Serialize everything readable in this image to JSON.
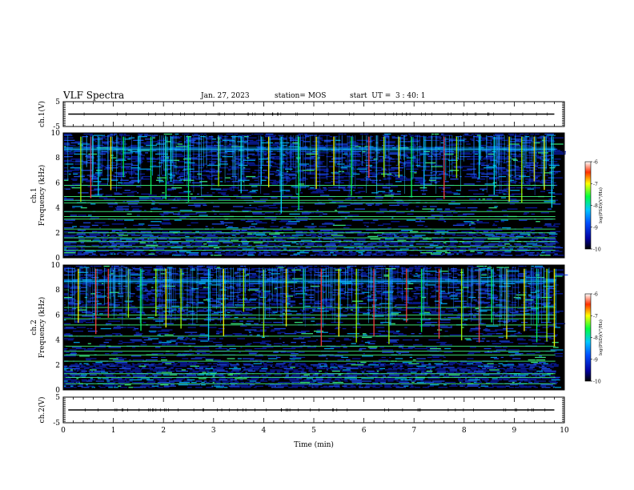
{
  "header": {
    "title": "VLF Spectra",
    "date": "Jan. 27, 2023",
    "station": "station= MOS",
    "start_ut": "start  UT =  3 : 40: 1"
  },
  "chart_data": [
    {
      "type": "line",
      "panel": "ch1-waveform",
      "ylabel": "ch.1(V)",
      "ylim": [
        -5,
        5
      ],
      "yticks": [
        "5",
        "-5"
      ],
      "xlim": [
        0,
        10
      ],
      "series": [
        {
          "x": [
            0.1,
            9.8
          ],
          "y": [
            0,
            0
          ]
        }
      ]
    },
    {
      "type": "heatmap",
      "panel": "ch1-spectrogram",
      "ylabel": "ch.1\nFrequency (kHz)",
      "ylim": [
        0,
        10
      ],
      "yticks": [
        "0",
        "2",
        "4",
        "6",
        "8",
        "10"
      ],
      "xlim": [
        0,
        10
      ],
      "colorbar": {
        "label": "log(PSD)(V²/Hz)",
        "range": [
          -10,
          -6
        ],
        "ticks": [
          "-6",
          "-7",
          "-8",
          "-9",
          "-10"
        ]
      },
      "bands_khz": [
        0.6,
        0.9,
        1.3,
        1.6,
        2.0,
        2.3,
        3.1,
        3.3,
        3.7,
        4.4,
        4.6,
        4.9,
        5.8,
        8.7
      ],
      "bursts_min": [
        0.35,
        0.55,
        0.7,
        0.95,
        1.2,
        1.5,
        1.75,
        2.05,
        2.15,
        2.5,
        3.1,
        3.55,
        3.95,
        4.1,
        4.35,
        4.7,
        5.05,
        5.4,
        5.75,
        6.1,
        6.4,
        6.7,
        6.95,
        7.2,
        7.6,
        7.85,
        8.3,
        8.6,
        8.9,
        9.15,
        9.4,
        9.6,
        9.75
      ]
    },
    {
      "type": "heatmap",
      "panel": "ch2-spectrogram",
      "ylabel": "ch.2\nFrequency (kHz)",
      "ylim": [
        0,
        10
      ],
      "yticks": [
        "0",
        "2",
        "4",
        "6",
        "8",
        "10"
      ],
      "xlim": [
        0,
        10
      ],
      "colorbar": {
        "label": "log(PSD)(V²/Hz)",
        "range": [
          -10,
          -6
        ],
        "ticks": [
          "-6",
          "-7",
          "-8",
          "-9",
          "-10"
        ]
      },
      "bands_khz": [
        0.5,
        1.0,
        1.3,
        2.3,
        2.8,
        3.1,
        3.5,
        4.3,
        5.2,
        5.7,
        6.0,
        6.6,
        8.7
      ],
      "bursts_min": [
        0.3,
        0.65,
        0.9,
        1.3,
        1.55,
        1.85,
        2.05,
        2.35,
        2.9,
        3.2,
        3.6,
        4.0,
        4.45,
        4.8,
        5.15,
        5.5,
        5.85,
        6.2,
        6.5,
        6.85,
        7.15,
        7.5,
        7.95,
        8.3,
        8.55,
        8.85,
        9.2,
        9.45,
        9.65,
        9.8
      ]
    },
    {
      "type": "line",
      "panel": "ch2-waveform",
      "ylabel": "ch.2(V)",
      "ylim": [
        -5,
        5
      ],
      "yticks": [
        "5",
        "-5"
      ],
      "xlim": [
        0,
        10
      ],
      "xlabel": "Time (min)",
      "xticks": [
        "0",
        "1",
        "2",
        "3",
        "4",
        "5",
        "6",
        "7",
        "8",
        "9",
        "10"
      ],
      "series": [
        {
          "x": [
            0.1,
            9.8
          ],
          "y": [
            0,
            0
          ]
        }
      ]
    }
  ]
}
